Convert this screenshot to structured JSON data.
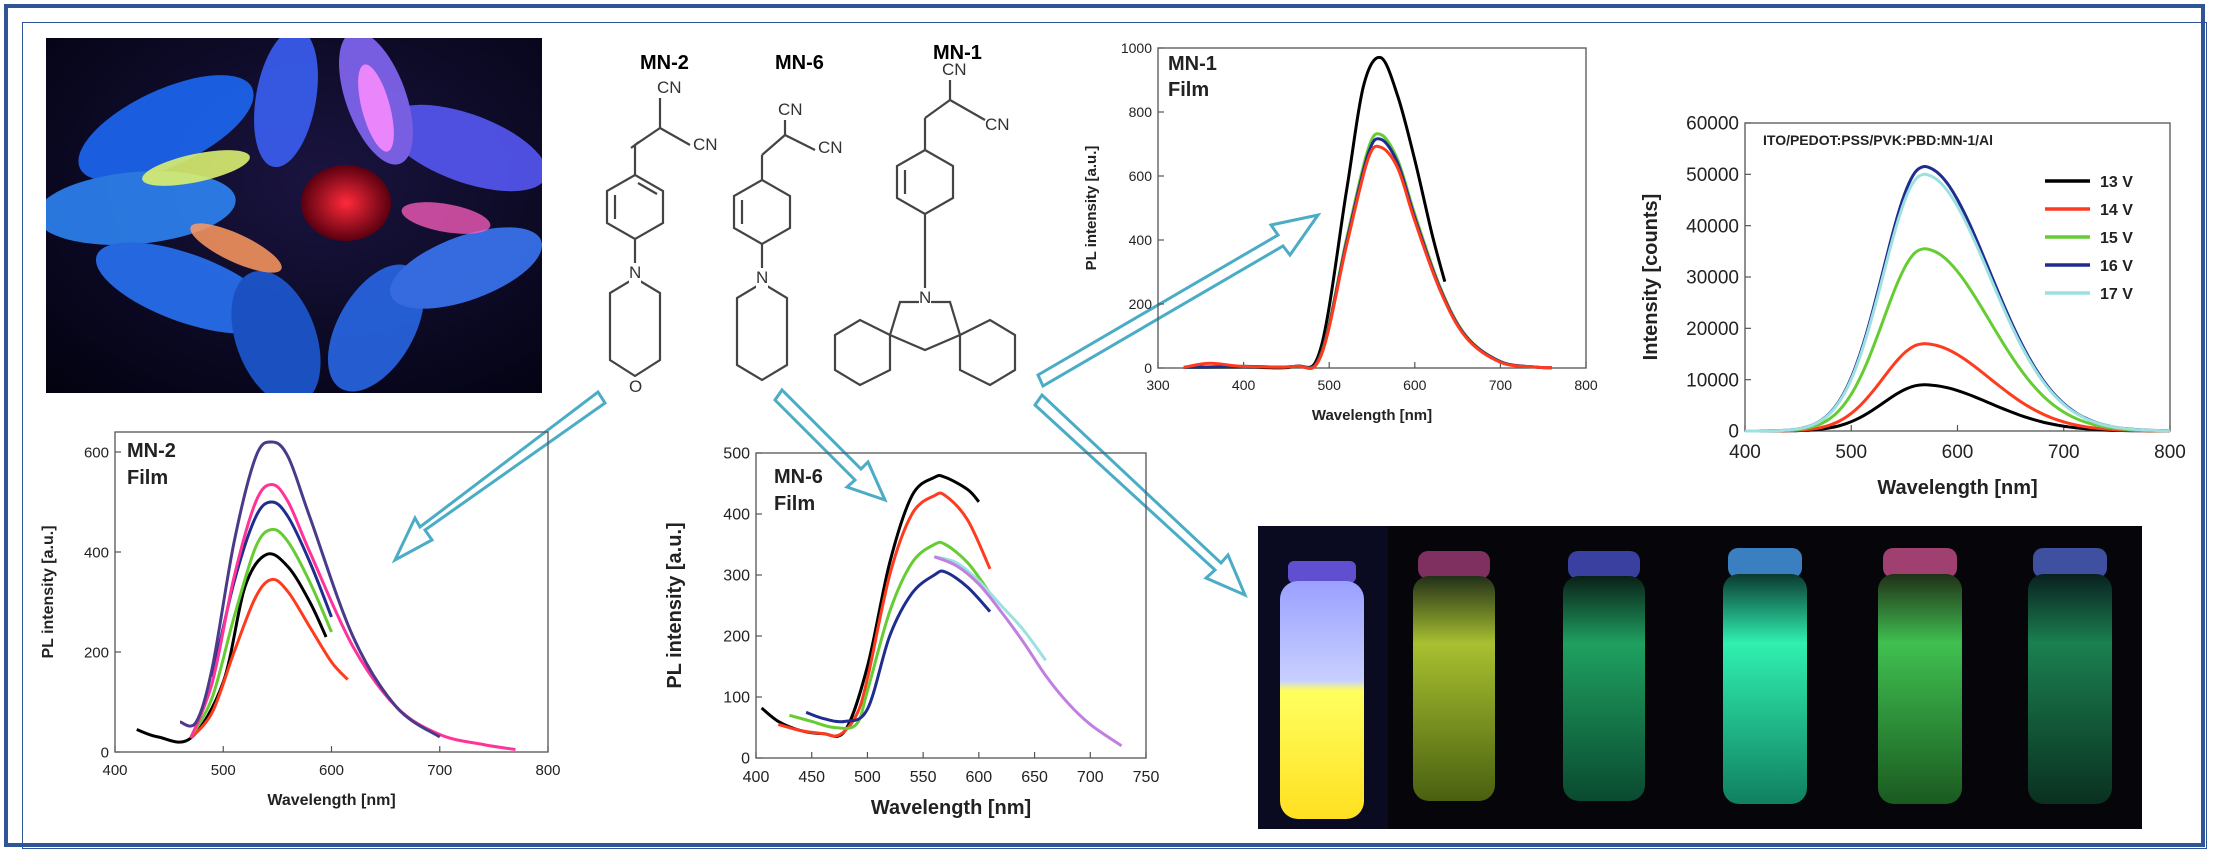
{
  "colors": {
    "border": "#2f5597",
    "arrow": "#4bacc6",
    "v13": "#000000",
    "v14": "#ff3b1f",
    "v15": "#66cc33",
    "v16": "#1f2d8f",
    "v17": "#9ce0e0",
    "pink": "#ff3399",
    "purple": "#4a3a8a",
    "lilac": "#c080e0"
  },
  "molecules": {
    "mn2": {
      "label": "MN-2",
      "cn1": "CN",
      "cn2": "CN",
      "n": "N",
      "o": "O"
    },
    "mn6": {
      "label": "MN-6",
      "cn1": "CN",
      "cn2": "CN",
      "n": "N"
    },
    "mn1": {
      "label": "MN-1",
      "cn1": "CN",
      "cn2": "CN",
      "n": "N"
    }
  },
  "chart_data": [
    {
      "id": "mn1-film",
      "type": "line",
      "title": "MN-1",
      "subtitle": "Film",
      "xlabel": "Wavelength [nm]",
      "ylabel": "PL intensity [a.u.]",
      "xlim": [
        300,
        800
      ],
      "ylim": [
        0,
        1000
      ],
      "xticks": [
        "300",
        "400",
        "500",
        "600",
        "700",
        "800"
      ],
      "yticks": [
        "0",
        "200",
        "400",
        "600",
        "800",
        "1000"
      ],
      "series": [
        {
          "color": "#000000",
          "x": [
            330,
            400,
            460,
            490,
            520,
            540,
            560,
            580,
            600,
            620,
            635
          ],
          "y": [
            2,
            3,
            5,
            60,
            550,
            880,
            970,
            850,
            650,
            420,
            270
          ]
        },
        {
          "color": "#66cc33",
          "x": [
            330,
            400,
            460,
            490,
            520,
            545,
            560,
            580,
            600,
            630,
            660,
            700,
            740,
            760
          ],
          "y": [
            2,
            5,
            5,
            40,
            400,
            680,
            730,
            650,
            480,
            250,
            100,
            20,
            3,
            1
          ]
        },
        {
          "color": "#1f2d8f",
          "x": [
            330,
            400,
            460,
            490,
            520,
            545,
            560,
            580,
            600,
            630,
            660,
            700,
            740,
            760
          ],
          "y": [
            2,
            5,
            5,
            38,
            390,
            665,
            715,
            640,
            470,
            245,
            98,
            20,
            3,
            1
          ]
        },
        {
          "color": "#ff3b1f",
          "x": [
            330,
            360,
            400,
            460,
            490,
            520,
            545,
            560,
            580,
            600,
            630,
            660,
            700,
            740,
            760
          ],
          "y": [
            2,
            15,
            5,
            5,
            35,
            380,
            650,
            690,
            625,
            460,
            240,
            95,
            18,
            3,
            1
          ]
        }
      ]
    },
    {
      "id": "el-spectrum",
      "type": "line",
      "title": "ITO/PEDOT:PSS/PVK:PBD:MN-1/Al",
      "xlabel": "Wavelength [nm]",
      "ylabel": "Intensity [counts]",
      "xlim": [
        400,
        800
      ],
      "ylim": [
        0,
        60000
      ],
      "xticks": [
        "400",
        "500",
        "600",
        "700",
        "800"
      ],
      "yticks": [
        "0",
        "10000",
        "20000",
        "30000",
        "40000",
        "50000",
        "60000"
      ],
      "legend": "top-right",
      "peak_wavelength": 568,
      "series": [
        {
          "name": "13 V",
          "color": "#000000",
          "peak": 9000
        },
        {
          "name": "14 V",
          "color": "#ff3b1f",
          "peak": 17000
        },
        {
          "name": "15 V",
          "color": "#66cc33",
          "peak": 35500
        },
        {
          "name": "16 V",
          "color": "#1f2d8f",
          "peak": 51500
        },
        {
          "name": "17 V",
          "color": "#9ce0e0",
          "peak": 50000
        }
      ]
    },
    {
      "id": "mn2-film",
      "type": "line",
      "title": "MN-2",
      "subtitle": "Film",
      "xlabel": "Wavelength [nm]",
      "ylabel": "PL intensity [a.u.]",
      "xlim": [
        400,
        800
      ],
      "ylim": [
        0,
        640
      ],
      "xticks": [
        "400",
        "500",
        "600",
        "700",
        "800"
      ],
      "yticks": [
        "0",
        "200",
        "400",
        "600"
      ],
      "series": [
        {
          "color": "#000000",
          "x": [
            420,
            440,
            470,
            500,
            520,
            540,
            560,
            580,
            595
          ],
          "y": [
            45,
            30,
            28,
            140,
            330,
            395,
            370,
            300,
            230
          ]
        },
        {
          "color": "#ff3b1f",
          "x": [
            470,
            490,
            510,
            530,
            545,
            560,
            580,
            600,
            615
          ],
          "y": [
            28,
            80,
            200,
            310,
            345,
            320,
            250,
            180,
            145
          ]
        },
        {
          "color": "#66cc33",
          "x": [
            470,
            490,
            510,
            530,
            545,
            560,
            580,
            600
          ],
          "y": [
            30,
            110,
            270,
            410,
            445,
            420,
            340,
            240
          ]
        },
        {
          "color": "#1f2d8f",
          "x": [
            490,
            510,
            530,
            545,
            560,
            580,
            600
          ],
          "y": [
            150,
            340,
            470,
            500,
            470,
            380,
            270
          ]
        },
        {
          "color": "#ff3399",
          "x": [
            470,
            490,
            510,
            530,
            545,
            560,
            580,
            620,
            660,
            700,
            740,
            770
          ],
          "y": [
            28,
            140,
            350,
            500,
            535,
            500,
            400,
            210,
            90,
            35,
            15,
            5
          ]
        },
        {
          "color": "#4a3a8a",
          "x": [
            460,
            475,
            490,
            510,
            530,
            545,
            560,
            580,
            620,
            660,
            700
          ],
          "y": [
            60,
            60,
            170,
            420,
            590,
            620,
            590,
            470,
            230,
            90,
            30
          ]
        }
      ]
    },
    {
      "id": "mn6-film",
      "type": "line",
      "title": "MN-6",
      "subtitle": "Film",
      "xlabel": "Wavelength [nm]",
      "ylabel": "PL intensity [a.u.]",
      "xlim": [
        400,
        750
      ],
      "ylim": [
        0,
        500
      ],
      "xticks": [
        "400",
        "450",
        "500",
        "550",
        "600",
        "650",
        "700",
        "750"
      ],
      "yticks": [
        "0",
        "100",
        "200",
        "300",
        "400",
        "500"
      ],
      "series": [
        {
          "color": "#000000",
          "x": [
            405,
            420,
            440,
            460,
            480,
            500,
            520,
            540,
            560,
            570,
            590,
            600
          ],
          "y": [
            82,
            60,
            45,
            40,
            45,
            150,
            320,
            430,
            460,
            460,
            440,
            420
          ]
        },
        {
          "color": "#ff3b1f",
          "x": [
            420,
            440,
            460,
            475,
            490,
            500,
            520,
            540,
            560,
            570,
            590,
            610
          ],
          "y": [
            55,
            45,
            40,
            38,
            70,
            130,
            300,
            400,
            430,
            430,
            390,
            310
          ]
        },
        {
          "color": "#66cc33",
          "x": [
            430,
            450,
            470,
            490,
            500,
            520,
            540,
            560,
            570,
            590,
            610
          ],
          "y": [
            70,
            60,
            50,
            55,
            110,
            240,
            320,
            350,
            350,
            320,
            270
          ]
        },
        {
          "color": "#9ce0e0",
          "x": [
            560,
            580,
            600,
            620,
            640,
            660
          ],
          "y": [
            330,
            320,
            290,
            250,
            210,
            160
          ]
        },
        {
          "color": "#1f2d8f",
          "x": [
            445,
            460,
            480,
            500,
            520,
            540,
            560,
            570,
            590,
            610
          ],
          "y": [
            75,
            65,
            60,
            80,
            200,
            270,
            300,
            305,
            280,
            240
          ]
        },
        {
          "color": "#c080e0",
          "x": [
            560,
            580,
            600,
            620,
            640,
            660,
            680,
            700,
            728
          ],
          "y": [
            330,
            315,
            285,
            240,
            190,
            135,
            90,
            55,
            20
          ]
        }
      ]
    }
  ]
}
